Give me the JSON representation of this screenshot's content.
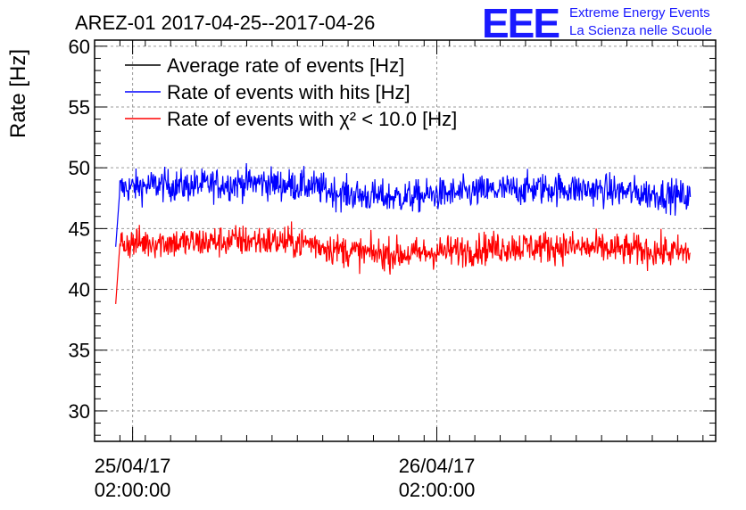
{
  "chart_data": {
    "type": "line",
    "title": "AREZ-01 2017-04-25--2017-04-26",
    "xlabel": "",
    "ylabel": "Rate [Hz]",
    "ylim": [
      27.5,
      60.5
    ],
    "yticks": [
      30,
      35,
      40,
      45,
      50,
      55,
      60
    ],
    "xlim": [
      "2017-04-24T23:00:00",
      "2017-04-27T00:00:00"
    ],
    "xticks": [
      {
        "x": "2017-04-25T02:00:00",
        "line1": "25/04/17",
        "line2": "02:00:00"
      },
      {
        "x": "2017-04-26T02:00:00",
        "line1": "26/04/17",
        "line2": "02:00:00"
      }
    ],
    "grid": true,
    "legend_position": "top-left",
    "series": [
      {
        "name": "Average rate of events [Hz]",
        "color": "#000000",
        "x": [],
        "values": []
      },
      {
        "name": "Rate of events with hits [Hz]",
        "color": "#0000ff",
        "x": [
          "2017-04-25T00:40:00",
          "2017-04-25T01:00:00",
          "2017-04-25T02:00:00",
          "2017-04-25T04:00:00",
          "2017-04-25T06:00:00",
          "2017-04-25T08:00:00",
          "2017-04-25T10:00:00",
          "2017-04-25T12:00:00",
          "2017-04-25T14:00:00",
          "2017-04-25T16:00:00",
          "2017-04-25T18:00:00",
          "2017-04-25T20:00:00",
          "2017-04-25T22:00:00",
          "2017-04-26T00:00:00",
          "2017-04-26T02:00:00",
          "2017-04-26T04:00:00",
          "2017-04-26T06:00:00",
          "2017-04-26T08:00:00",
          "2017-04-26T10:00:00",
          "2017-04-26T12:00:00",
          "2017-04-26T14:00:00",
          "2017-04-26T16:00:00",
          "2017-04-26T18:00:00",
          "2017-04-26T20:00:00",
          "2017-04-26T22:00:00"
        ],
        "values": [
          43.5,
          48.3,
          48.4,
          48.6,
          48.5,
          48.6,
          48.7,
          48.8,
          48.6,
          48.5,
          48.0,
          47.7,
          47.6,
          47.6,
          47.8,
          47.9,
          48.1,
          48.2,
          48.3,
          48.3,
          48.2,
          48.1,
          47.9,
          47.8,
          47.6
        ]
      },
      {
        "name": "Rate of events with χ² < 10.0 [Hz]",
        "color": "#ff0000",
        "x": [
          "2017-04-25T00:40:00",
          "2017-04-25T01:00:00",
          "2017-04-25T02:00:00",
          "2017-04-25T04:00:00",
          "2017-04-25T06:00:00",
          "2017-04-25T08:00:00",
          "2017-04-25T10:00:00",
          "2017-04-25T12:00:00",
          "2017-04-25T14:00:00",
          "2017-04-25T16:00:00",
          "2017-04-25T18:00:00",
          "2017-04-25T20:00:00",
          "2017-04-25T22:00:00",
          "2017-04-26T00:00:00",
          "2017-04-26T02:00:00",
          "2017-04-26T04:00:00",
          "2017-04-26T06:00:00",
          "2017-04-26T08:00:00",
          "2017-04-26T10:00:00",
          "2017-04-26T12:00:00",
          "2017-04-26T14:00:00",
          "2017-04-26T16:00:00",
          "2017-04-26T18:00:00",
          "2017-04-26T20:00:00",
          "2017-04-26T22:00:00"
        ],
        "values": [
          38.8,
          43.8,
          43.8,
          43.9,
          43.8,
          43.9,
          44.0,
          44.0,
          43.9,
          43.8,
          43.3,
          43.0,
          42.9,
          42.9,
          43.1,
          43.2,
          43.4,
          43.5,
          43.5,
          43.5,
          43.4,
          43.3,
          43.2,
          43.1,
          43.0
        ]
      }
    ]
  },
  "logo": {
    "mark": "EEE",
    "line1": "Extreme Energy Events",
    "line2": "La Scienza nelle Scuole"
  }
}
